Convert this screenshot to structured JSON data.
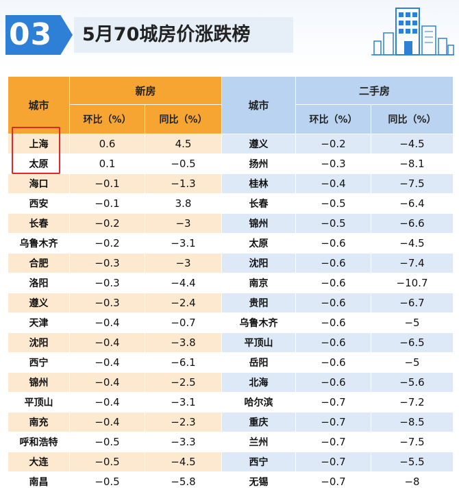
{
  "header": {
    "number": "03",
    "title": "5月70城房价涨跌榜"
  },
  "table": {
    "city_label_left": "城市",
    "new_house_label": "新房",
    "city_label_right": "城市",
    "second_hand_label": "二手房",
    "mom_label": "环比（%）",
    "yoy_label": "同比（%）",
    "mom_label_right": "环比（%）",
    "yoy_label_right": "同比（%）",
    "rows": [
      {
        "new_city": "上海",
        "new_mom": "0.6",
        "new_yoy": "4.5",
        "old_city": "遵义",
        "old_mom": "−0.2",
        "old_yoy": "−4.5"
      },
      {
        "new_city": "太原",
        "new_mom": "0.1",
        "new_yoy": "−0.5",
        "old_city": "扬州",
        "old_mom": "−0.3",
        "old_yoy": "−8.1"
      },
      {
        "new_city": "海口",
        "new_mom": "−0.1",
        "new_yoy": "−1.3",
        "old_city": "桂林",
        "old_mom": "−0.4",
        "old_yoy": "−7.5"
      },
      {
        "new_city": "西安",
        "new_mom": "−0.1",
        "new_yoy": "3.8",
        "old_city": "长春",
        "old_mom": "−0.5",
        "old_yoy": "−6.4"
      },
      {
        "new_city": "长春",
        "new_mom": "−0.2",
        "new_yoy": "−3",
        "old_city": "锦州",
        "old_mom": "−0.5",
        "old_yoy": "−6.6"
      },
      {
        "new_city": "乌鲁木齐",
        "new_mom": "−0.2",
        "new_yoy": "−3.1",
        "old_city": "太原",
        "old_mom": "−0.6",
        "old_yoy": "−4.5"
      },
      {
        "new_city": "合肥",
        "new_mom": "−0.3",
        "new_yoy": "−3",
        "old_city": "沈阳",
        "old_mom": "−0.6",
        "old_yoy": "−7.4"
      },
      {
        "new_city": "洛阳",
        "new_mom": "−0.3",
        "new_yoy": "−4.4",
        "old_city": "南京",
        "old_mom": "−0.6",
        "old_yoy": "−10.7"
      },
      {
        "new_city": "遵义",
        "new_mom": "−0.3",
        "new_yoy": "−2.4",
        "old_city": "贵阳",
        "old_mom": "−0.6",
        "old_yoy": "−6.7"
      },
      {
        "new_city": "天津",
        "new_mom": "−0.4",
        "new_yoy": "−0.7",
        "old_city": "乌鲁木齐",
        "old_mom": "−0.6",
        "old_yoy": "−5"
      },
      {
        "new_city": "沈阳",
        "new_mom": "−0.4",
        "new_yoy": "−3.8",
        "old_city": "平顶山",
        "old_mom": "−0.6",
        "old_yoy": "−6.5"
      },
      {
        "new_city": "西宁",
        "new_mom": "−0.4",
        "new_yoy": "−6.1",
        "old_city": "岳阳",
        "old_mom": "−0.6",
        "old_yoy": "−5"
      },
      {
        "new_city": "锦州",
        "new_mom": "−0.4",
        "new_yoy": "−2.5",
        "old_city": "北海",
        "old_mom": "−0.6",
        "old_yoy": "−5.6"
      },
      {
        "new_city": "平顶山",
        "new_mom": "−0.4",
        "new_yoy": "−3.1",
        "old_city": "哈尔滨",
        "old_mom": "−0.7",
        "old_yoy": "−7.2"
      },
      {
        "new_city": "南充",
        "new_mom": "−0.4",
        "new_yoy": "−2.3",
        "old_city": "重庆",
        "old_mom": "−0.7",
        "old_yoy": "−8.5"
      },
      {
        "new_city": "呼和浩特",
        "new_mom": "−0.5",
        "new_yoy": "−3.3",
        "old_city": "兰州",
        "old_mom": "−0.7",
        "old_yoy": "−7.5"
      },
      {
        "new_city": "大连",
        "new_mom": "−0.5",
        "new_yoy": "−4.5",
        "old_city": "西宁",
        "old_mom": "−0.7",
        "old_yoy": "−5.5"
      },
      {
        "new_city": "南昌",
        "new_mom": "−0.5",
        "new_yoy": "−5.8",
        "old_city": "无锡",
        "old_mom": "−0.7",
        "old_yoy": "−8"
      }
    ]
  },
  "colors": {
    "accent_blue": "#2e7fd6",
    "new_header": "#f7a532",
    "new_stripe": "#fde9cf",
    "old_header": "#b9d3f0",
    "old_stripe": "#dde9f7",
    "highlight": "#e0262a"
  },
  "icons": {
    "skyline": "city-buildings-icon"
  }
}
